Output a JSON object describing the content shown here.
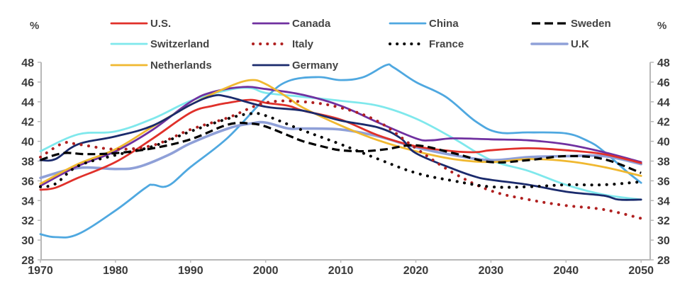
{
  "chart_data": {
    "type": "line",
    "title": "",
    "xlabel": "",
    "ylabel_left": "%",
    "ylabel_right": "%",
    "xlim": [
      1970,
      2051
    ],
    "ylim": [
      28,
      48
    ],
    "x_ticks": [
      1970,
      1980,
      1990,
      2000,
      2010,
      2020,
      2030,
      2040,
      2050
    ],
    "y_ticks": [
      28,
      30,
      32,
      34,
      36,
      38,
      40,
      42,
      44,
      46,
      48
    ],
    "grid": false,
    "legend_position": "top",
    "series": [
      {
        "name": "U.S.",
        "color": "#e0302a",
        "style": "solid",
        "points": [
          [
            1970,
            35.1
          ],
          [
            1972,
            35.3
          ],
          [
            1975,
            36.3
          ],
          [
            1980,
            37.9
          ],
          [
            1985,
            40.3
          ],
          [
            1990,
            42.9
          ],
          [
            1993,
            43.6
          ],
          [
            1995,
            43.9
          ],
          [
            1998,
            44.2
          ],
          [
            2000,
            43.9
          ],
          [
            2003,
            43.6
          ],
          [
            2005,
            43.1
          ],
          [
            2010,
            42.2
          ],
          [
            2015,
            40.6
          ],
          [
            2020,
            39.5
          ],
          [
            2025,
            39.0
          ],
          [
            2028,
            38.9
          ],
          [
            2030,
            39.1
          ],
          [
            2035,
            39.3
          ],
          [
            2040,
            39.1
          ],
          [
            2045,
            38.7
          ],
          [
            2050,
            37.8
          ]
        ]
      },
      {
        "name": "Canada",
        "color": "#7030a0",
        "style": "solid",
        "points": [
          [
            1970,
            35.5
          ],
          [
            1975,
            37.5
          ],
          [
            1980,
            39.0
          ],
          [
            1985,
            41.2
          ],
          [
            1990,
            44.0
          ],
          [
            1993,
            45.0
          ],
          [
            1997,
            45.5
          ],
          [
            2000,
            45.3
          ],
          [
            2005,
            44.7
          ],
          [
            2010,
            43.6
          ],
          [
            2015,
            41.9
          ],
          [
            2020,
            40.3
          ],
          [
            2022,
            40.1
          ],
          [
            2025,
            40.3
          ],
          [
            2030,
            40.2
          ],
          [
            2035,
            40.1
          ],
          [
            2040,
            39.7
          ],
          [
            2045,
            38.9
          ],
          [
            2050,
            37.9
          ]
        ]
      },
      {
        "name": "China",
        "color": "#4fa8e0",
        "style": "solid",
        "points": [
          [
            1970,
            30.6
          ],
          [
            1972,
            30.3
          ],
          [
            1975,
            30.6
          ],
          [
            1980,
            33.0
          ],
          [
            1984,
            35.3
          ],
          [
            1985,
            35.6
          ],
          [
            1987,
            35.5
          ],
          [
            1990,
            37.4
          ],
          [
            1995,
            40.4
          ],
          [
            2000,
            44.4
          ],
          [
            2003,
            46.1
          ],
          [
            2007,
            46.5
          ],
          [
            2010,
            46.2
          ],
          [
            2013,
            46.5
          ],
          [
            2016,
            47.7
          ],
          [
            2017,
            47.5
          ],
          [
            2020,
            46.0
          ],
          [
            2024,
            44.5
          ],
          [
            2028,
            42.0
          ],
          [
            2031,
            40.9
          ],
          [
            2035,
            40.9
          ],
          [
            2040,
            40.8
          ],
          [
            2043,
            40.0
          ],
          [
            2045,
            39.0
          ],
          [
            2048,
            37.0
          ],
          [
            2050,
            35.8
          ]
        ]
      },
      {
        "name": "Sweden",
        "color": "#000000",
        "style": "dashed",
        "points": [
          [
            1970,
            38.1
          ],
          [
            1973,
            38.8
          ],
          [
            1976,
            38.7
          ],
          [
            1980,
            38.8
          ],
          [
            1985,
            39.3
          ],
          [
            1990,
            40.2
          ],
          [
            1995,
            41.7
          ],
          [
            1998,
            41.8
          ],
          [
            2000,
            41.5
          ],
          [
            2003,
            40.6
          ],
          [
            2005,
            40.0
          ],
          [
            2008,
            39.4
          ],
          [
            2010,
            39.1
          ],
          [
            2013,
            39.0
          ],
          [
            2016,
            39.2
          ],
          [
            2020,
            39.6
          ],
          [
            2025,
            38.8
          ],
          [
            2030,
            37.9
          ],
          [
            2035,
            38.1
          ],
          [
            2040,
            38.5
          ],
          [
            2045,
            38.2
          ],
          [
            2050,
            36.8
          ]
        ]
      },
      {
        "name": "Switzerland",
        "color": "#7fe8ec",
        "style": "solid",
        "points": [
          [
            1970,
            39.0
          ],
          [
            1975,
            40.7
          ],
          [
            1980,
            41.0
          ],
          [
            1985,
            42.3
          ],
          [
            1990,
            44.1
          ],
          [
            1995,
            45.2
          ],
          [
            1998,
            45.4
          ],
          [
            2000,
            44.9
          ],
          [
            2005,
            44.5
          ],
          [
            2010,
            44.1
          ],
          [
            2015,
            43.6
          ],
          [
            2020,
            42.3
          ],
          [
            2025,
            40.3
          ],
          [
            2030,
            38.1
          ],
          [
            2035,
            37.0
          ],
          [
            2040,
            35.6
          ],
          [
            2045,
            34.6
          ],
          [
            2050,
            34.1
          ]
        ]
      },
      {
        "name": "Italy",
        "color": "#b02020",
        "style": "dotted",
        "points": [
          [
            1970,
            38.4
          ],
          [
            1973,
            39.8
          ],
          [
            1975,
            39.7
          ],
          [
            1980,
            39.2
          ],
          [
            1985,
            39.6
          ],
          [
            1990,
            41.2
          ],
          [
            1995,
            42.4
          ],
          [
            2000,
            43.9
          ],
          [
            2005,
            44.0
          ],
          [
            2010,
            43.4
          ],
          [
            2015,
            42.0
          ],
          [
            2020,
            39.3
          ],
          [
            2025,
            36.8
          ],
          [
            2030,
            35.0
          ],
          [
            2035,
            34.1
          ],
          [
            2040,
            33.5
          ],
          [
            2045,
            33.1
          ],
          [
            2050,
            32.2
          ]
        ]
      },
      {
        "name": "France",
        "color": "#000000",
        "style": "dotted",
        "points": [
          [
            1970,
            35.4
          ],
          [
            1972,
            35.7
          ],
          [
            1975,
            37.5
          ],
          [
            1980,
            38.6
          ],
          [
            1985,
            39.5
          ],
          [
            1990,
            41.0
          ],
          [
            1995,
            42.3
          ],
          [
            1998,
            42.8
          ],
          [
            2000,
            42.6
          ],
          [
            2005,
            41.1
          ],
          [
            2010,
            39.7
          ],
          [
            2015,
            38.2
          ],
          [
            2020,
            36.8
          ],
          [
            2025,
            36.0
          ],
          [
            2030,
            35.4
          ],
          [
            2035,
            35.4
          ],
          [
            2040,
            35.6
          ],
          [
            2045,
            35.6
          ],
          [
            2050,
            35.9
          ]
        ]
      },
      {
        "name": "U.K",
        "color": "#8fa0d8",
        "style": "solid-thick",
        "points": [
          [
            1970,
            36.3
          ],
          [
            1975,
            37.3
          ],
          [
            1980,
            37.2
          ],
          [
            1983,
            37.4
          ],
          [
            1987,
            38.6
          ],
          [
            1990,
            39.8
          ],
          [
            1995,
            41.3
          ],
          [
            1998,
            41.8
          ],
          [
            2000,
            41.9
          ],
          [
            2003,
            41.3
          ],
          [
            2005,
            41.3
          ],
          [
            2010,
            41.2
          ],
          [
            2015,
            40.5
          ],
          [
            2020,
            39.4
          ],
          [
            2025,
            38.6
          ],
          [
            2030,
            38.1
          ],
          [
            2035,
            38.4
          ],
          [
            2040,
            38.5
          ],
          [
            2045,
            38.5
          ],
          [
            2050,
            37.7
          ]
        ]
      },
      {
        "name": "Netherlands",
        "color": "#f0b830",
        "style": "solid",
        "points": [
          [
            1970,
            35.7
          ],
          [
            1975,
            37.7
          ],
          [
            1980,
            39.2
          ],
          [
            1985,
            41.5
          ],
          [
            1990,
            43.7
          ],
          [
            1995,
            45.5
          ],
          [
            1998,
            46.2
          ],
          [
            2000,
            45.8
          ],
          [
            2003,
            44.4
          ],
          [
            2005,
            43.4
          ],
          [
            2010,
            41.6
          ],
          [
            2015,
            40.1
          ],
          [
            2020,
            39.0
          ],
          [
            2025,
            38.2
          ],
          [
            2030,
            37.9
          ],
          [
            2035,
            38.2
          ],
          [
            2040,
            38.0
          ],
          [
            2045,
            37.4
          ],
          [
            2050,
            36.5
          ]
        ]
      },
      {
        "name": "Germany",
        "color": "#1a2a6c",
        "style": "solid",
        "points": [
          [
            1970,
            38.1
          ],
          [
            1972,
            38.2
          ],
          [
            1975,
            39.7
          ],
          [
            1980,
            40.5
          ],
          [
            1985,
            41.6
          ],
          [
            1990,
            43.7
          ],
          [
            1993,
            44.6
          ],
          [
            1995,
            44.5
          ],
          [
            2000,
            43.5
          ],
          [
            2005,
            43.1
          ],
          [
            2010,
            42.1
          ],
          [
            2015,
            41.4
          ],
          [
            2018,
            40.3
          ],
          [
            2020,
            38.8
          ],
          [
            2025,
            37.2
          ],
          [
            2028,
            36.4
          ],
          [
            2030,
            36.1
          ],
          [
            2035,
            35.6
          ],
          [
            2040,
            34.9
          ],
          [
            2045,
            34.5
          ],
          [
            2047,
            34.1
          ],
          [
            2050,
            34.1
          ]
        ]
      }
    ],
    "legend_order": [
      "U.S.",
      "Canada",
      "China",
      "Sweden",
      "Switzerland",
      "Italy",
      "France",
      "U.K",
      "Netherlands",
      "Germany"
    ]
  }
}
